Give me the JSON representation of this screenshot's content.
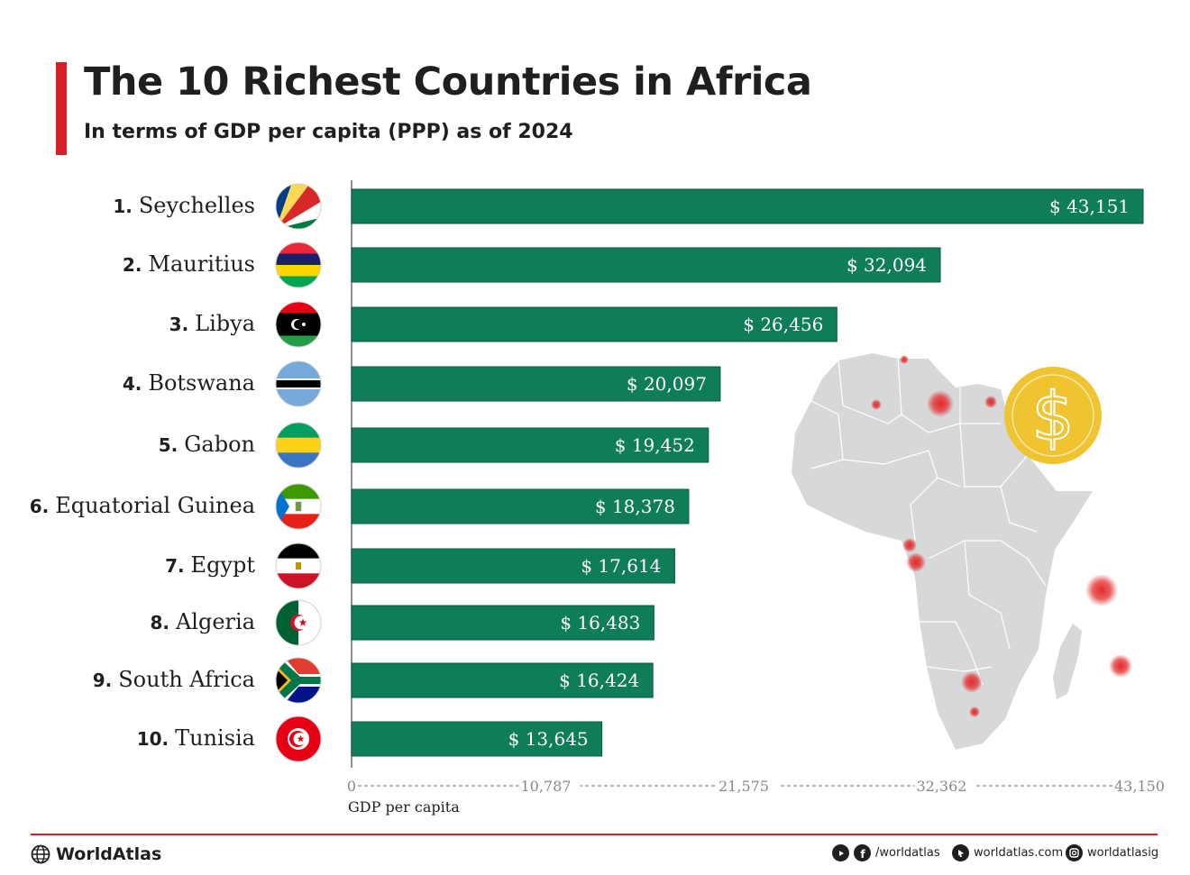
{
  "header": {
    "title": "The 10 Richest Countries in Africa",
    "subtitle": "In terms of GDP per capita (PPP) as of 2024"
  },
  "colors": {
    "accent": "#d62027",
    "bar": "#0f7c5a",
    "bar_border": "#0a5a40",
    "map_land": "#d7d8da",
    "marker": "#e32b2b",
    "coin": "#f0c330"
  },
  "chart_data": {
    "type": "bar",
    "orientation": "horizontal",
    "categories": [
      "Seychelles",
      "Mauritius",
      "Libya",
      "Botswana",
      "Gabon",
      "Equatorial Guinea",
      "Egypt",
      "Algeria",
      "South Africa",
      "Tunisia"
    ],
    "ranks": [
      "1.",
      "2.",
      "3.",
      "4.",
      "5.",
      "6.",
      "7.",
      "8.",
      "9.",
      "10."
    ],
    "values": [
      43151,
      32094,
      26456,
      20097,
      19452,
      18378,
      17614,
      16483,
      16424,
      13645
    ],
    "value_labels": [
      "$ 43,151",
      "$ 32,094",
      "$ 26,456",
      "$ 20,097",
      "$ 19,452",
      "$ 18,378",
      "$ 17,614",
      "$ 16,483",
      "$ 16,424",
      "$ 13,645"
    ],
    "flags": [
      "seychelles-flag-icon",
      "mauritius-flag-icon",
      "libya-flag-icon",
      "botswana-flag-icon",
      "gabon-flag-icon",
      "equatorial-guinea-flag-icon",
      "egypt-flag-icon",
      "algeria-flag-icon",
      "south-africa-flag-icon",
      "tunisia-flag-icon"
    ],
    "xlim": [
      0,
      43150
    ],
    "ticks": [
      0,
      10787,
      21575,
      32362,
      43150
    ],
    "tick_labels": [
      "0",
      "10,787",
      "21,575",
      "32,362",
      "43,150"
    ],
    "xlabel": "GDP per capita",
    "grid": false,
    "legend": "none",
    "decoration": "africa-map-icon with dollar-coin-icon"
  },
  "footer": {
    "brand": "WorldAtlas",
    "social": "/worldatlas",
    "website": "worldatlas.com",
    "instagram": "worldatlasig"
  }
}
